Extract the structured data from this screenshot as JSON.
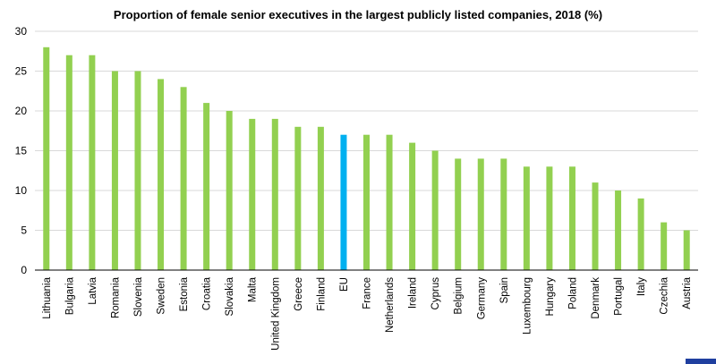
{
  "colors": {
    "bar": "#92D050",
    "highlight": "#00B0F0",
    "grid": "#D9D9D9",
    "axis": "#000000"
  },
  "chart_data": {
    "type": "bar",
    "title": "Proportion of female senior executives in the largest publicly listed companies, 2018 (%)",
    "xlabel": "",
    "ylabel": "",
    "ylim": [
      0,
      30
    ],
    "yticks": [
      0,
      5,
      10,
      15,
      20,
      25,
      30
    ],
    "grid": true,
    "highlight_category": "EU",
    "categories": [
      "Lithuania",
      "Bulgaria",
      "Latvia",
      "Romania",
      "Slovenia",
      "Sweden",
      "Estonia",
      "Croatia",
      "Slovakia",
      "Malta",
      "United Kingdom",
      "Greece",
      "Finland",
      "EU",
      "France",
      "Netherlands",
      "Ireland",
      "Cyprus",
      "Belgium",
      "Germany",
      "Spain",
      "Luxembourg",
      "Hungary",
      "Poland",
      "Denmark",
      "Portugal",
      "Italy",
      "Czechia",
      "Austria"
    ],
    "values": [
      28,
      27,
      27,
      25,
      25,
      24,
      23,
      21,
      20,
      19,
      19,
      18,
      18,
      17,
      17,
      17,
      16,
      15,
      14,
      14,
      14,
      13,
      13,
      13,
      11,
      10,
      9,
      6,
      5
    ]
  }
}
